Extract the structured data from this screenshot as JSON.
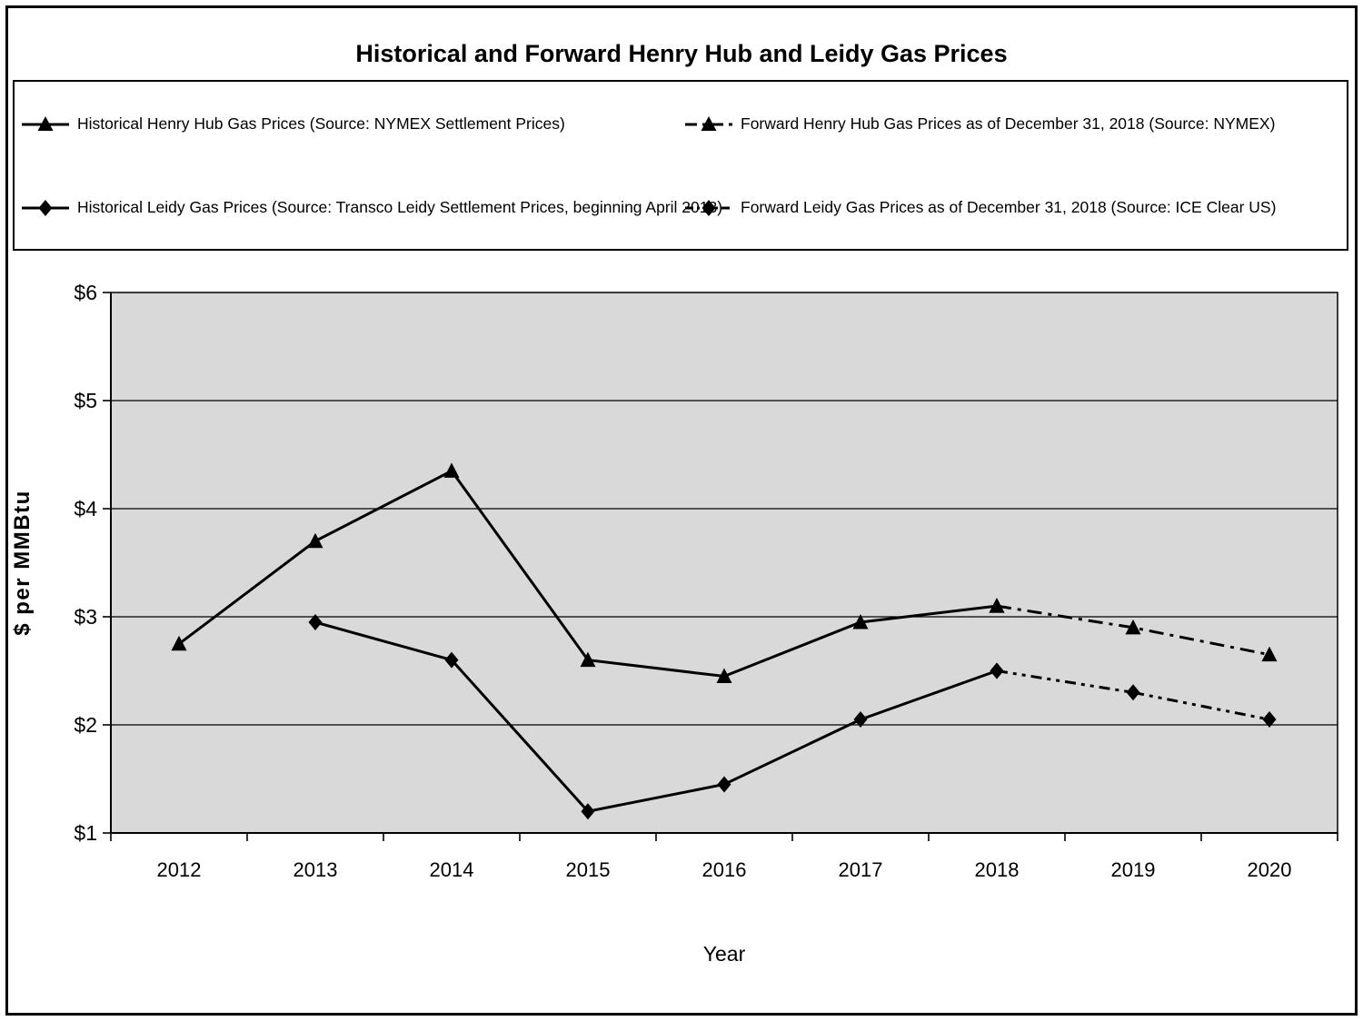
{
  "chart_data": {
    "type": "line",
    "title": "Historical and Forward Henry Hub and Leidy Gas Prices",
    "categories": [
      "2012",
      "2013",
      "2014",
      "2015",
      "2016",
      "2017",
      "2018",
      "2019",
      "2020"
    ],
    "series": [
      {
        "name": "Historical Henry Hub Gas Prices (Source: NYMEX Settlement Prices)",
        "marker": "triangle",
        "line": "solid",
        "values": [
          2.75,
          3.7,
          4.35,
          2.6,
          2.45,
          2.95,
          3.1,
          null,
          null
        ]
      },
      {
        "name": "Forward Henry Hub Gas Prices as of December 31, 2018 (Source: NYMEX)",
        "marker": "triangle",
        "line": "dashdot",
        "values": [
          null,
          null,
          null,
          null,
          null,
          null,
          3.1,
          2.9,
          2.65
        ]
      },
      {
        "name": "Historical Leidy Gas Prices (Source: Transco Leidy Settlement Prices, beginning April 2013)",
        "marker": "diamond",
        "line": "solid",
        "values": [
          null,
          2.95,
          2.6,
          1.2,
          1.45,
          2.05,
          2.5,
          null,
          null
        ]
      },
      {
        "name": "Forward Leidy Gas Prices as of December 31, 2018 (Source: ICE Clear US)",
        "marker": "diamond",
        "line": "dashdotdot",
        "values": [
          null,
          null,
          null,
          null,
          null,
          null,
          2.5,
          2.3,
          2.05
        ]
      }
    ],
    "xlabel": "Year",
    "ylabel": "$ per MMBtu",
    "ylim": [
      1,
      6
    ],
    "ytick_labels": [
      "$1",
      "$2",
      "$3",
      "$4",
      "$5",
      "$6"
    ],
    "grid": true,
    "legend_position": "top",
    "plot_bg": "#d9d9d9"
  },
  "colors": {
    "line": "#000000",
    "plot_bg": "#d9d9d9",
    "border": "#000000",
    "background": "#ffffff"
  }
}
